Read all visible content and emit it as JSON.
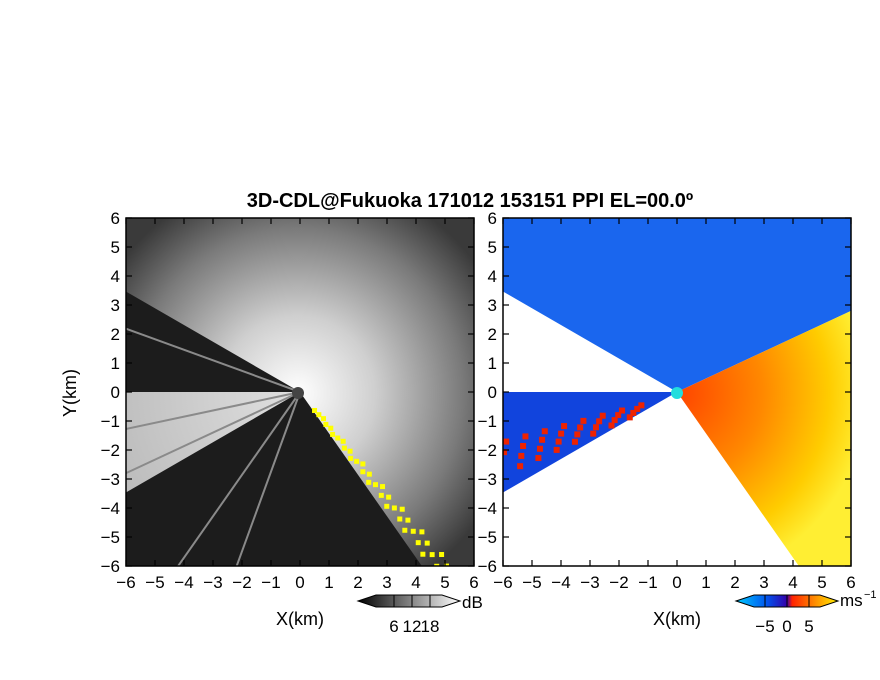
{
  "title": "3D-CDL@Fukuoka 171012 153151 PPI EL=00.0º",
  "chart_data": [
    {
      "type": "heatmap",
      "panel": "reflectivity",
      "xlabel": "X(km)",
      "ylabel": "Y(km)",
      "xlim": [
        -6,
        6
      ],
      "ylim": [
        -6,
        6
      ],
      "xticks": [
        -6,
        -5,
        -4,
        -3,
        -2,
        -1,
        0,
        1,
        2,
        3,
        4,
        5,
        6
      ],
      "yticks": [
        -6,
        -5,
        -4,
        -3,
        -2,
        -1,
        0,
        1,
        2,
        3,
        4,
        5,
        6
      ],
      "xtick_labels": [
        "−6",
        "−5",
        "−4",
        "−3",
        "−2",
        "−1",
        "0",
        "1",
        "2",
        "3",
        "4",
        "5",
        "6"
      ],
      "ytick_labels": [
        "−6",
        "−5",
        "−4",
        "−3",
        "−2",
        "−1",
        "0",
        "1",
        "2",
        "3",
        "4",
        "5",
        "6"
      ],
      "colorbar": {
        "unit": "dB",
        "ticks": [
          6,
          12,
          18
        ],
        "tick_labels": [
          "6",
          "12",
          "18"
        ],
        "colors": [
          "#000000",
          "#ffffff"
        ],
        "highlight_color": "#ffff00"
      },
      "sector_boundaries_deg": [
        -55,
        25,
        150,
        180,
        210
      ],
      "radar_position": [
        0,
        0
      ]
    },
    {
      "type": "heatmap",
      "panel": "doppler-velocity",
      "xlabel": "X(km)",
      "xlim": [
        -6,
        6
      ],
      "ylim": [
        -6,
        6
      ],
      "xticks": [
        -6,
        -5,
        -4,
        -3,
        -2,
        -1,
        0,
        1,
        2,
        3,
        4,
        5,
        6
      ],
      "yticks": [
        -6,
        -5,
        -4,
        -3,
        -2,
        -1,
        0,
        1,
        2,
        3,
        4,
        5,
        6
      ],
      "xtick_labels": [
        "−6",
        "−5",
        "−4",
        "−3",
        "−2",
        "−1",
        "0",
        "1",
        "2",
        "3",
        "4",
        "5",
        "6"
      ],
      "ytick_labels": [
        "−6",
        "−5",
        "−4",
        "−3",
        "−2",
        "−1",
        "0",
        "1",
        "2",
        "3",
        "4",
        "5",
        "6"
      ],
      "colorbar": {
        "unit": "ms",
        "unit_exponent": "−1",
        "ticks": [
          -5,
          0,
          5
        ],
        "tick_labels": [
          "−5",
          "0",
          "5"
        ],
        "colors": [
          "#00ccff",
          "#0033dd",
          "#ff3300",
          "#ffee00"
        ]
      },
      "sector_boundaries_deg": [
        -55,
        25,
        150,
        180,
        210
      ],
      "radar_position": [
        0,
        0
      ]
    }
  ]
}
